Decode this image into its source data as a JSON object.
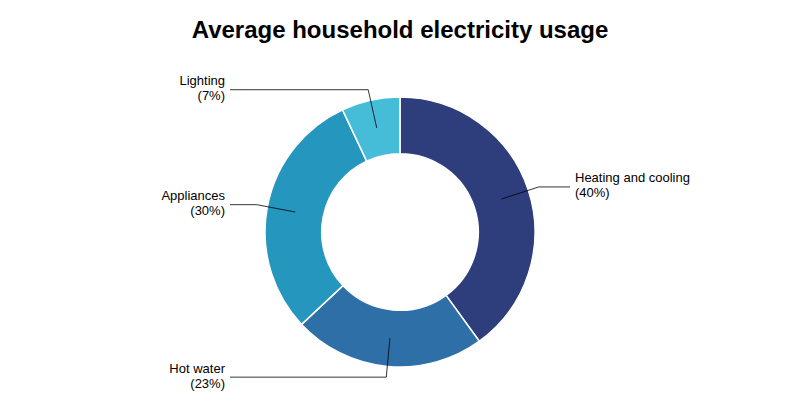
{
  "chart_data": {
    "type": "pie",
    "title": "Average household electricity usage",
    "categories": [
      "Heating and cooling\n(40%)",
      "Hot water\n(23%)",
      "Appliances\n(30%)",
      "Lighting\n(7%)"
    ],
    "values": [
      40,
      23,
      30,
      7
    ],
    "colors": [
      "#2e3d7c",
      "#2e6fa8",
      "#2596be",
      "#45bcd8"
    ]
  }
}
